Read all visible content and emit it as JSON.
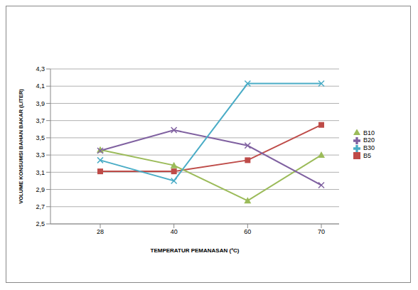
{
  "chart_data": {
    "type": "line",
    "x_label": "TEMPERATUR PEMANASAN (ºC)",
    "y_label": "VOLUME KONSUMSI BAHAN BAKAR (LITER)",
    "categories": [
      "28",
      "40",
      "60",
      "70"
    ],
    "series": [
      {
        "name": "B5",
        "color": "#be4b48",
        "marker": "square",
        "values": [
          3.11,
          3.11,
          3.24,
          3.65
        ]
      },
      {
        "name": "B10",
        "color": "#9bbb59",
        "marker": "triangle",
        "values": [
          3.36,
          3.18,
          2.77,
          3.3
        ]
      },
      {
        "name": "B20",
        "color": "#7f60a0",
        "marker": "x",
        "values": [
          3.35,
          3.59,
          3.41,
          2.95
        ]
      },
      {
        "name": "B30",
        "color": "#4aacc6",
        "marker": "x",
        "values": [
          3.24,
          3.0,
          4.13,
          4.13
        ]
      }
    ],
    "ylim": [
      2.5,
      4.3
    ],
    "yticks": [
      {
        "value": 2.5,
        "label": "2,5"
      },
      {
        "value": 2.7,
        "label": "2,7"
      },
      {
        "value": 2.9,
        "label": "2,9"
      },
      {
        "value": 3.1,
        "label": "3,1"
      },
      {
        "value": 3.3,
        "label": "3,3"
      },
      {
        "value": 3.5,
        "label": "3,5"
      },
      {
        "value": 3.7,
        "label": "3,7"
      },
      {
        "value": 3.9,
        "label": "3,9"
      },
      {
        "value": 4.1,
        "label": "4,1"
      },
      {
        "value": 4.3,
        "label": "4,3"
      }
    ],
    "grid": true,
    "legend": "right"
  }
}
